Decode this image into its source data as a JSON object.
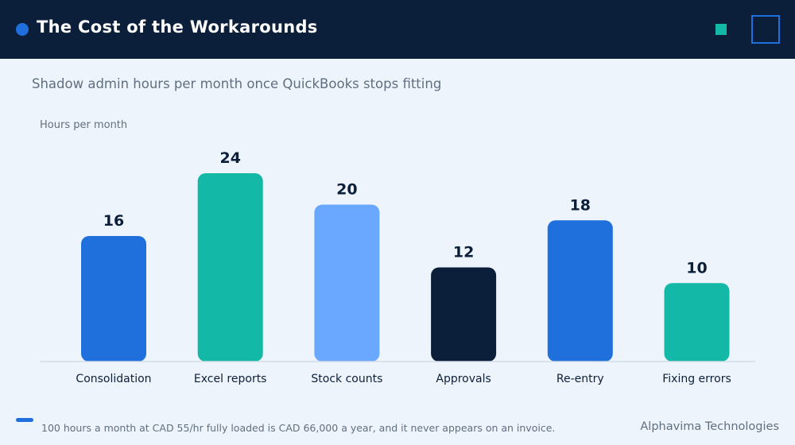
{
  "header": {
    "title": "The Cost of the Workarounds"
  },
  "subtitle": "Shadow admin hours per month once QuickBooks stops fitting",
  "chart_data": {
    "type": "bar",
    "title": "",
    "ylabel": "Hours per month",
    "xlabel": "",
    "categories": [
      "Consolidation",
      "Excel reports",
      "Stock counts",
      "Approvals",
      "Re-entry",
      "Fixing errors"
    ],
    "values": [
      16,
      24,
      20,
      12,
      18,
      10
    ],
    "data_labels": [
      "16",
      "24",
      "20",
      "12",
      "18",
      "10"
    ],
    "colors": [
      "#1f6fdc",
      "#14b8a6",
      "#6aa7ff",
      "#0b1f3b",
      "#1f6fdc",
      "#14b8a6"
    ],
    "ylim": [
      0,
      24
    ],
    "grid": false,
    "legend": "none"
  },
  "footer": {
    "note": "100 hours a month at CAD 55/hr fully loaded is CAD 66,000 a year, and it never appears on an invoice.",
    "brand": "Alphavima Technologies"
  },
  "colors": {
    "header_bg": "#0b1f3b",
    "accent_blue": "#1f6fdc",
    "accent_teal": "#14b8a6",
    "page_bg": "#eef4fb"
  }
}
